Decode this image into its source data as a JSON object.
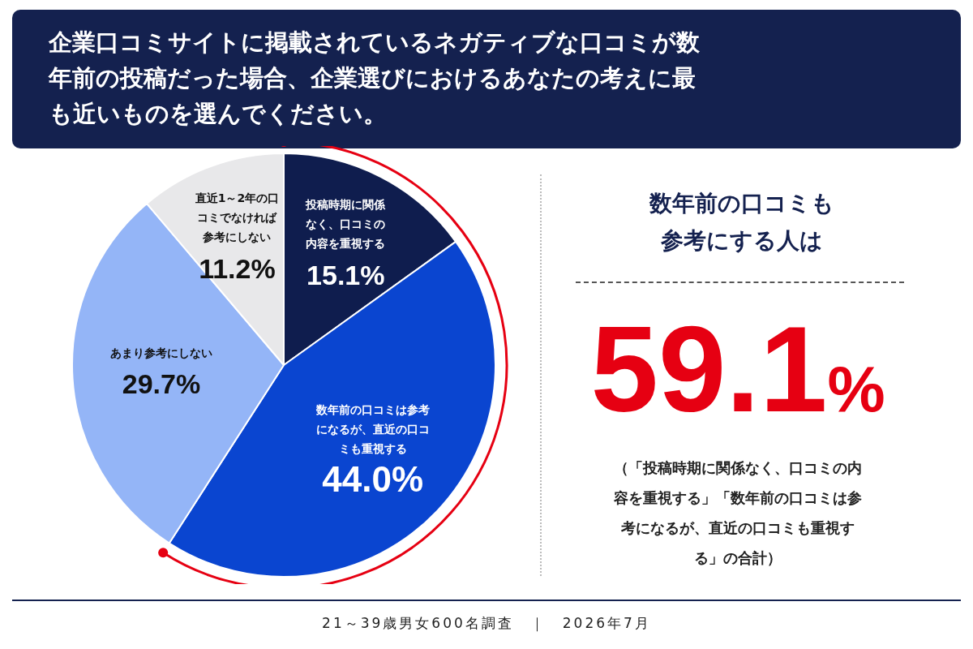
{
  "chart_data": {
    "type": "pie",
    "title": "企業口コミサイトに掲載されているネガティブな口コミが数年前の投稿だった場合、企業選びにおけるあなたの考えに最も近いものを選んでください。",
    "categories": [
      "投稿時期に関係なく、口コミの内容を重視する",
      "数年前の口コミは参考になるが、直近の口コミも重視する",
      "あまり参考にしない",
      "直近1～2年の口コミでなければ参考にしない"
    ],
    "values": [
      15.1,
      44.0,
      29.7,
      11.2
    ],
    "value_labels": [
      "15.1%",
      "44.0%",
      "29.7%",
      "11.2%"
    ],
    "colors": [
      "#0f1d4e",
      "#0a45d0",
      "#94b5f7",
      "#e8e8ea"
    ],
    "legend": false,
    "annotations": [
      "数年前の口コミも参考にする人は",
      "59.1%",
      "（「投稿時期に関係なく、口コミの内容を重視する」「数年前の口コミは参考になるが、直近の口コミも重視する」の合計）",
      "21～39歳男女600名調査　｜　2026年7月"
    ]
  }
}
